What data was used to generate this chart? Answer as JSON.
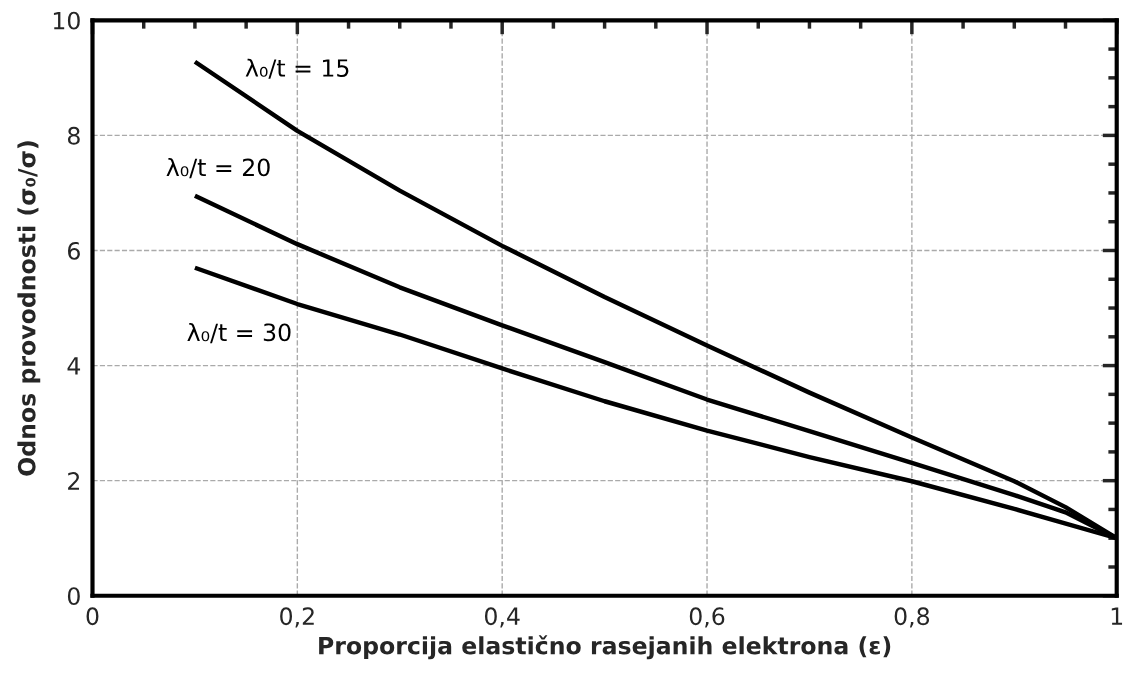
{
  "chart_data": {
    "type": "line",
    "xlabel": "Proporcija elastično rasejanih elektrona (ε)",
    "ylabel": "Odnos provodnosti (σ₀/σ)",
    "xlim": [
      0,
      1
    ],
    "ylim": [
      0,
      10
    ],
    "xticks": [
      0,
      {
        "value": 0.2,
        "label": "0,2"
      },
      {
        "value": 0.4,
        "label": "0,4"
      },
      {
        "value": 0.6,
        "label": "0,6"
      },
      {
        "value": 0.8,
        "label": "0,8"
      },
      1
    ],
    "yticks": [
      0,
      2,
      4,
      6,
      8,
      10
    ],
    "grid": true,
    "legend": false,
    "marker": "none",
    "line_style": "solid",
    "series": [
      {
        "name": "λ₀/t = 15",
        "color": "#000000",
        "x": [
          0.1,
          0.2,
          0.3,
          0.4,
          0.5,
          0.6,
          0.7,
          0.8,
          0.9,
          0.95,
          1
        ],
        "values": [
          9.28,
          8.08,
          7.04,
          6.08,
          5.19,
          4.35,
          3.53,
          2.75,
          1.99,
          1.54,
          1.0
        ]
      },
      {
        "name": "λ₀/t = 20",
        "color": "#000000",
        "x": [
          0.1,
          0.2,
          0.3,
          0.4,
          0.5,
          0.6,
          0.7,
          0.8,
          0.9,
          0.95,
          1
        ],
        "values": [
          6.95,
          6.11,
          5.36,
          4.7,
          4.06,
          3.41,
          2.86,
          2.31,
          1.75,
          1.45,
          1.0
        ]
      },
      {
        "name": "λ₀/t = 30",
        "color": "#000000",
        "x": [
          0.1,
          0.2,
          0.3,
          0.4,
          0.5,
          0.6,
          0.7,
          0.8,
          0.9,
          1
        ],
        "values": [
          5.7,
          5.07,
          4.54,
          3.95,
          3.38,
          2.87,
          2.41,
          1.99,
          1.51,
          1.0
        ]
      }
    ]
  }
}
